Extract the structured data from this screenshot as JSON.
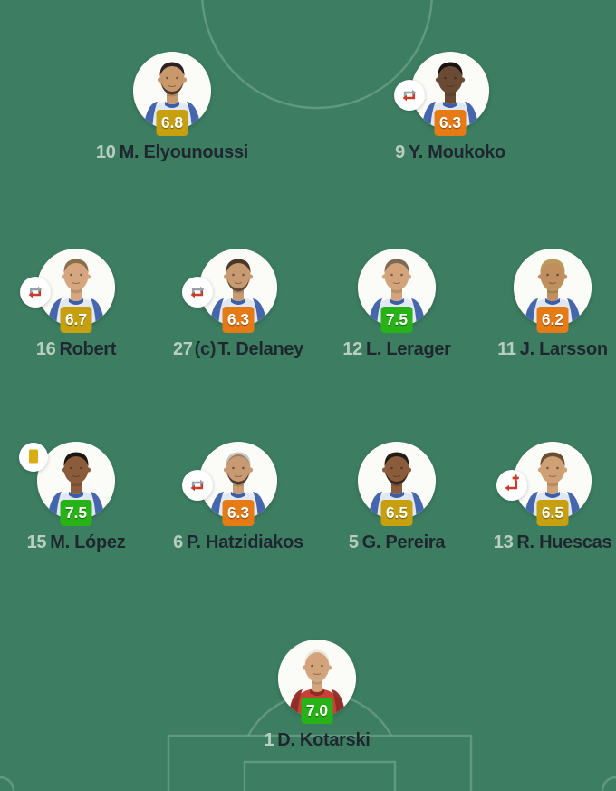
{
  "screen": {
    "name": "football-lineup-ratings",
    "pitch_background": "#3d7e63",
    "pitch_line_color": "#7fae96"
  },
  "rating_colors": {
    "gold": "#c6a00f",
    "orange": "#e67b15",
    "green": "#27b315"
  },
  "badge_text_color": "#ffffff",
  "name_colors": {
    "number": "#b9cec0",
    "name": "#1f272e"
  },
  "icon_colors": {
    "icon_bg": "#ffffff",
    "sub_in_arrow": "#999fa6",
    "sub_out_arrow": "#c63d2c",
    "yellow_card": "#d9ad15"
  },
  "captain_label": "(c)",
  "team": {
    "formation_rows": [
      {
        "line": "attack",
        "players": [
          {
            "number": "10",
            "name": "M. Elyounoussi",
            "rating": "6.8",
            "rating_color": "gold",
            "captain": false,
            "substituted": false,
            "sub_injury": false,
            "yellow_card": false,
            "avatar": {
              "skin": "#c9986b",
              "hair": "#2a2320",
              "jersey": "#e2e9f3",
              "accent": "#3c5ea9",
              "beard": true,
              "bald": false
            }
          },
          {
            "number": "9",
            "name": "Y. Moukoko",
            "rating": "6.3",
            "rating_color": "orange",
            "captain": false,
            "substituted": true,
            "sub_injury": false,
            "yellow_card": false,
            "avatar": {
              "skin": "#6b4a33",
              "hair": "#191412",
              "jersey": "#dfe7f2",
              "accent": "#3c5ea9",
              "beard": false,
              "bald": false
            }
          }
        ]
      },
      {
        "line": "midfield",
        "players": [
          {
            "number": "16",
            "name": "Robert",
            "rating": "6.7",
            "rating_color": "gold",
            "captain": false,
            "substituted": true,
            "sub_injury": false,
            "yellow_card": false,
            "avatar": {
              "skin": "#d6a77e",
              "hair": "#8a6f4a",
              "jersey": "#e2e9f3",
              "accent": "#3c5ea9",
              "beard": false,
              "bald": false
            }
          },
          {
            "number": "27",
            "name": "T. Delaney",
            "rating": "6.3",
            "rating_color": "orange",
            "captain": true,
            "substituted": true,
            "sub_injury": false,
            "yellow_card": false,
            "avatar": {
              "skin": "#c79a72",
              "hair": "#4a3828",
              "jersey": "#dfe7f2",
              "accent": "#3c5ea9",
              "beard": true,
              "bald": false
            }
          },
          {
            "number": "12",
            "name": "L. Lerager",
            "rating": "7.5",
            "rating_color": "green",
            "captain": false,
            "substituted": false,
            "sub_injury": false,
            "yellow_card": false,
            "avatar": {
              "skin": "#d3a47c",
              "hair": "#7d6a52",
              "jersey": "#e2e9f3",
              "accent": "#3c5ea9",
              "beard": false,
              "bald": false
            }
          },
          {
            "number": "11",
            "name": "J. Larsson",
            "rating": "6.2",
            "rating_color": "orange",
            "captain": false,
            "substituted": false,
            "sub_injury": false,
            "yellow_card": false,
            "avatar": {
              "skin": "#c08e5f",
              "hair": "#b99a5c",
              "jersey": "#dfe7f2",
              "accent": "#3c5ea9",
              "beard": true,
              "bald": false
            }
          }
        ]
      },
      {
        "line": "defence",
        "players": [
          {
            "number": "15",
            "name": "M. López",
            "rating": "7.5",
            "rating_color": "green",
            "captain": false,
            "substituted": false,
            "sub_injury": false,
            "yellow_card": true,
            "avatar": {
              "skin": "#8a5c3c",
              "hair": "#1c1613",
              "jersey": "#dfe7f2",
              "accent": "#3c5ea9",
              "beard": false,
              "bald": false
            }
          },
          {
            "number": "6",
            "name": "P. Hatzidiakos",
            "rating": "6.3",
            "rating_color": "orange",
            "captain": false,
            "substituted": true,
            "sub_injury": false,
            "yellow_card": false,
            "avatar": {
              "skin": "#c79a72",
              "hair": "#2e2620",
              "jersey": "#e2e9f3",
              "accent": "#3c5ea9",
              "beard": true,
              "bald": true
            }
          },
          {
            "number": "5",
            "name": "G. Pereira",
            "rating": "6.5",
            "rating_color": "gold",
            "captain": false,
            "substituted": false,
            "sub_injury": false,
            "yellow_card": false,
            "avatar": {
              "skin": "#8a5c3c",
              "hair": "#241c16",
              "jersey": "#dfe7f2",
              "accent": "#3c5ea9",
              "beard": true,
              "bald": false
            }
          },
          {
            "number": "13",
            "name": "R. Huescas",
            "rating": "6.5",
            "rating_color": "gold",
            "captain": false,
            "substituted": false,
            "sub_injury": true,
            "yellow_card": false,
            "avatar": {
              "skin": "#d0a075",
              "hair": "#6b4f33",
              "jersey": "#dfe7f2",
              "accent": "#3c5ea9",
              "beard": false,
              "bald": false
            }
          }
        ]
      },
      {
        "line": "goalkeeper",
        "players": [
          {
            "number": "1",
            "name": "D. Kotarski",
            "rating": "7.0",
            "rating_color": "green",
            "captain": false,
            "substituted": false,
            "sub_injury": false,
            "yellow_card": false,
            "avatar": {
              "skin": "#d3a47c",
              "hair": "#c9b08a",
              "jersey": "#c84138",
              "accent": "#8e2b25",
              "beard": true,
              "bald": true
            }
          }
        ]
      }
    ]
  }
}
